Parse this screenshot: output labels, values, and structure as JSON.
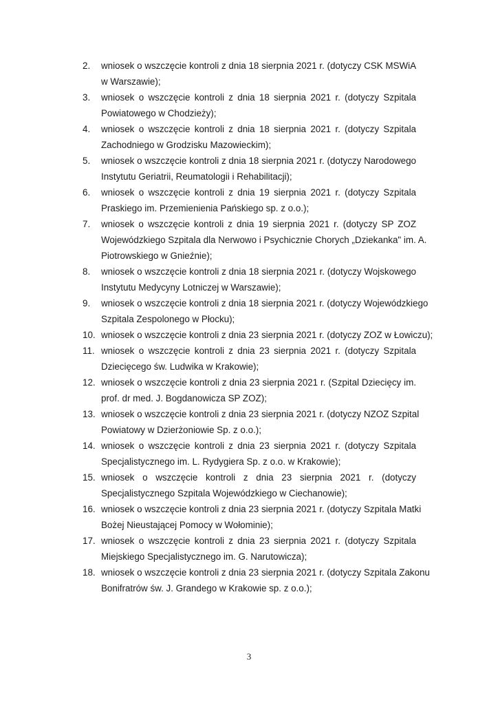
{
  "items": [
    {
      "num": "2.",
      "lines": [
        "wniosek o wszczęcie kontroli z dnia 18 sierpnia 2021 r. (dotyczy CSK MSWiA",
        "w Warszawie);"
      ]
    },
    {
      "num": "3.",
      "lines": [
        "wniosek o wszczęcie kontroli z dnia 18 sierpnia 2021 r. (dotyczy Szpitala",
        "Powiatowego w Chodzieży);"
      ]
    },
    {
      "num": "4.",
      "lines": [
        "wniosek o wszczęcie kontroli z dnia 18 sierpnia 2021 r. (dotyczy Szpitala",
        "Zachodniego w Grodzisku Mazowieckim);"
      ]
    },
    {
      "num": "5.",
      "lines": [
        "wniosek o wszczęcie kontroli z dnia 18 sierpnia 2021 r. (dotyczy Narodowego",
        "Instytutu Geriatrii, Reumatologii i Rehabilitacji);"
      ]
    },
    {
      "num": "6.",
      "lines": [
        "wniosek o wszczęcie kontroli z dnia 19 sierpnia 2021 r. (dotyczy Szpitala",
        "Praskiego im. Przemienienia Pańskiego sp. z o.o.);"
      ]
    },
    {
      "num": "7.",
      "lines": [
        "wniosek o wszczęcie kontroli z dnia 19 sierpnia 2021 r. (dotyczy SP ZOZ",
        "Wojewódzkiego Szpitala dla Nerwowo i Psychicznie Chorych „Dziekanka\" im. A.",
        "Piotrowskiego w Gnieźnie);"
      ]
    },
    {
      "num": "8.",
      "lines": [
        "wniosek o wszczęcie kontroli z dnia 18 sierpnia 2021 r. (dotyczy Wojskowego",
        "Instytutu Medycyny Lotniczej w Warszawie);"
      ]
    },
    {
      "num": "9.",
      "lines": [
        "wniosek o wszczęcie kontroli z dnia 18 sierpnia 2021 r. (dotyczy Wojewódzkiego",
        "Szpitala Zespolonego w Płocku);"
      ]
    },
    {
      "num": "10.",
      "lines": [
        "wniosek o wszczęcie kontroli z dnia 23 sierpnia 2021 r. (dotyczy ZOZ w Łowiczu);"
      ]
    },
    {
      "num": "11.",
      "lines": [
        "wniosek o wszczęcie kontroli z dnia 23 sierpnia 2021 r. (dotyczy Szpitala",
        "Dziecięcego św. Ludwika w Krakowie);"
      ]
    },
    {
      "num": "12.",
      "lines": [
        "wniosek o wszczęcie kontroli z dnia 23 sierpnia 2021 r. (Szpital Dziecięcy im.",
        "prof. dr med. J. Bogdanowicza SP ZOZ);"
      ]
    },
    {
      "num": "13.",
      "lines": [
        "wniosek o wszczęcie kontroli z dnia 23 sierpnia 2021 r. (dotyczy NZOZ Szpital",
        "Powiatowy w Dzierżoniowie Sp. z o.o.);"
      ]
    },
    {
      "num": "14.",
      "lines": [
        "wniosek o wszczęcie kontroli z dnia 23 sierpnia 2021 r. (dotyczy Szpitala",
        "Specjalistycznego im. L. Rydygiera Sp. z o.o. w Krakowie);"
      ]
    },
    {
      "num": "15.",
      "lines": [
        "wniosek o wszczęcie kontroli z dnia 23 sierpnia 2021 r. (dotyczy",
        "Specjalistycznego Szpitala Wojewódzkiego w Ciechanowie);"
      ]
    },
    {
      "num": "16.",
      "lines": [
        "wniosek o wszczęcie kontroli z dnia 23 sierpnia 2021 r. (dotyczy Szpitala Matki",
        "Bożej Nieustającej Pomocy w Wołominie);"
      ]
    },
    {
      "num": "17.",
      "lines": [
        "wniosek o wszczęcie kontroli z dnia 23 sierpnia 2021 r. (dotyczy Szpitala",
        "Miejskiego Specjalistycznego im. G. Narutowicza);"
      ]
    },
    {
      "num": "18.",
      "lines": [
        "wniosek o wszczęcie kontroli z dnia 23 sierpnia 2021 r. (dotyczy Szpitala Zakonu",
        "Bonifratrów św. J. Grandego w Krakowie sp. z o.o.);"
      ]
    }
  ],
  "page_number": "3"
}
